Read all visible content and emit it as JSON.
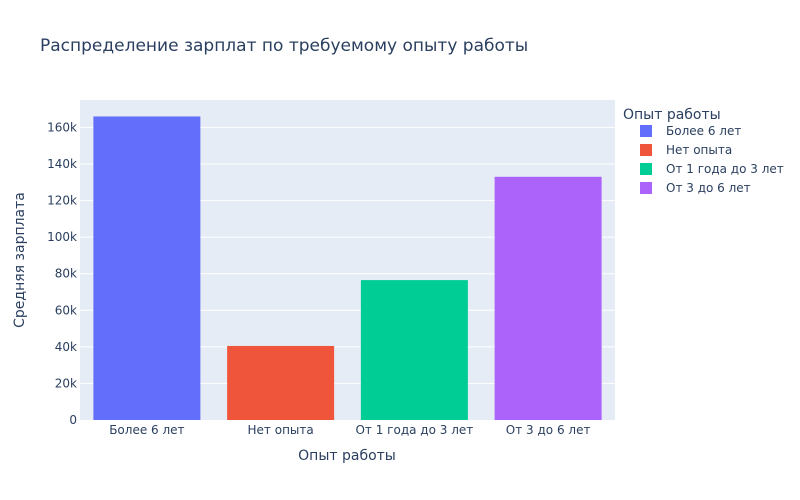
{
  "chart_data": {
    "type": "bar",
    "title": "Распределение зарплат по требуемому опыту работы",
    "xlabel": "Опыт работы",
    "ylabel": "Средняя зарплата",
    "categories": [
      "Более 6 лет",
      "Нет опыта",
      "От 1 года до 3 лет",
      "От 3 до 6 лет"
    ],
    "values": [
      166000,
      40500,
      76500,
      133000
    ],
    "colors": [
      "#636efa",
      "#ef553b",
      "#00cc96",
      "#ab63fa"
    ],
    "ylim": [
      0,
      175000
    ],
    "yticks": [
      0,
      20000,
      40000,
      60000,
      80000,
      100000,
      120000,
      140000,
      160000
    ],
    "ytick_labels": [
      "0",
      "20k",
      "40k",
      "60k",
      "80k",
      "100k",
      "120k",
      "140k",
      "160k"
    ],
    "grid": true,
    "legend": {
      "title": "Опыт работы",
      "placement": "right",
      "entries": [
        "Более 6 лет",
        "Нет опыта",
        "От 1 года до 3 лет",
        "От 3 до 6 лет"
      ]
    }
  }
}
